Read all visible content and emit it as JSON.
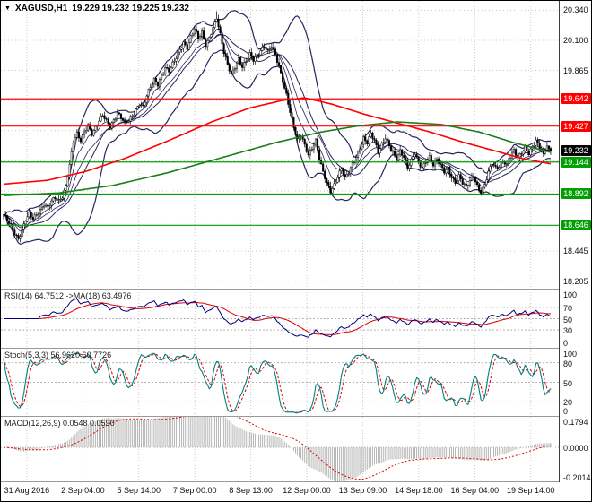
{
  "title": {
    "icon": "▼",
    "symbol_period": "XAGUSD,H1",
    "ohlc": "19.229 19.232 19.225 19.232"
  },
  "colors": {
    "grid": "#c9c9c9",
    "candle": "#000000",
    "candle_up_fill": "#ffffff",
    "bollinger": "#26265e",
    "ma_red": "#ff0000",
    "ma_green": "#1b7e1b",
    "resistance": "#ff0000",
    "support": "#00a000",
    "current_price_bg": "#000000",
    "rsi_line": "#000080",
    "rsi_ma": "#dd0000",
    "stoch_k": "#008080",
    "stoch_d": "#dd0000",
    "macd_hist": "#b5b5b5",
    "macd_signal": "#dd0000"
  },
  "main": {
    "price_min": 18.147,
    "price_max": 20.413,
    "y_axis_labels": [
      {
        "value": "20.340",
        "price": 20.34
      },
      {
        "value": "20.100",
        "price": 20.1
      },
      {
        "value": "19.865",
        "price": 19.865
      },
      {
        "value": "18.445",
        "price": 18.445
      },
      {
        "value": "18.205",
        "price": 18.205
      }
    ],
    "price_boxes": [
      {
        "value": "19.642",
        "price": 19.642,
        "color": "#ff0000",
        "type": "resistance"
      },
      {
        "value": "19.427",
        "price": 19.427,
        "color": "#ff0000",
        "type": "resistance"
      },
      {
        "value": "19.232",
        "price": 19.232,
        "color": "#000000",
        "type": "current-price"
      },
      {
        "value": "19.144",
        "price": 19.144,
        "color": "#00a000",
        "type": "support"
      },
      {
        "value": "18.892",
        "price": 18.892,
        "color": "#00a000",
        "type": "support"
      },
      {
        "value": "18.646",
        "price": 18.646,
        "color": "#00a000",
        "type": "support"
      }
    ],
    "h_lines": [
      {
        "price": 19.642,
        "color": "#ff0000"
      },
      {
        "price": 19.427,
        "color": "#ff0000"
      },
      {
        "price": 19.144,
        "color": "#00a000"
      },
      {
        "price": 18.892,
        "color": "#00a000"
      },
      {
        "price": 18.646,
        "color": "#00a000"
      }
    ]
  },
  "panels": {
    "rsi": {
      "header": "RSI(14) 64.7512 ->MA(18) 63.4976",
      "labels": [
        {
          "v": "100",
          "y": 100
        },
        {
          "v": "70",
          "y": 70
        },
        {
          "v": "50",
          "y": 50
        },
        {
          "v": "30",
          "y": 30
        },
        {
          "v": "0",
          "y": 0
        }
      ],
      "levels": [
        70,
        50,
        30
      ]
    },
    "stoch": {
      "header": "Stoch(5,3,3) 56.9620 60.7726",
      "labels": [
        {
          "v": "100",
          "y": 100
        },
        {
          "v": "80",
          "y": 80
        },
        {
          "v": "50",
          "y": 50
        },
        {
          "v": "20",
          "y": 20
        },
        {
          "v": "0",
          "y": 0
        }
      ],
      "levels": [
        80,
        50,
        20
      ]
    },
    "macd": {
      "header": "MACD(12,26,9) 0.0548 0.0590",
      "labels": [
        {
          "v": "0.1794",
          "y": 0.1794
        },
        {
          "v": "0.0000",
          "y": 0
        },
        {
          "v": "-0.2014",
          "y": -0.2014
        }
      ],
      "levels": [
        0
      ]
    }
  },
  "x_axis": {
    "labels": [
      "31 Aug 2016",
      "2 Sep 04:00",
      "5 Sep 14:00",
      "7 Sep 00:00",
      "8 Sep 13:00",
      "12 Sep 00:00",
      "13 Sep 09:00",
      "14 Sep 18:00",
      "16 Sep 04:00",
      "19 Sep 14:00"
    ]
  },
  "chart_data": {
    "type": "candlestick",
    "symbol": "XAGUSD",
    "timeframe": "H1",
    "title": "XAGUSD,H1 19.229 19.232 19.225 19.232",
    "x_tick_labels": [
      "31 Aug 2016",
      "2 Sep 04:00",
      "5 Sep 14:00",
      "7 Sep 00:00",
      "8 Sep 13:00",
      "12 Sep 00:00",
      "13 Sep 09:00",
      "14 Sep 18:00",
      "16 Sep 04:00",
      "19 Sep 14:00"
    ],
    "y_tick_labels": [
      "20.340",
      "20.100",
      "19.865",
      "18.445",
      "18.205"
    ],
    "y_range": [
      18.205,
      20.34
    ],
    "closes": [
      18.72,
      18.69,
      18.65,
      18.59,
      18.54,
      18.6,
      18.68,
      18.73,
      18.7,
      18.74,
      18.77,
      18.81,
      18.78,
      18.83,
      18.86,
      18.84,
      18.88,
      18.96,
      19.12,
      19.3,
      19.36,
      19.31,
      19.39,
      19.44,
      19.37,
      19.41,
      19.46,
      19.51,
      19.47,
      19.43,
      19.48,
      19.53,
      19.49,
      19.44,
      19.47,
      19.51,
      19.56,
      19.61,
      19.58,
      19.66,
      19.73,
      19.79,
      19.76,
      19.83,
      19.89,
      19.86,
      19.91,
      19.96,
      20.03,
      20.09,
      20.05,
      20.13,
      20.19,
      20.11,
      20.16,
      20.07,
      20.13,
      20.21,
      20.28,
      20.14,
      20.0,
      19.91,
      19.84,
      19.9,
      19.96,
      19.89,
      19.93,
      19.99,
      19.95,
      19.99,
      20.03,
      20.06,
      20.01,
      20.05,
      19.98,
      19.9,
      19.79,
      19.68,
      19.54,
      19.41,
      19.31,
      19.36,
      19.28,
      19.21,
      19.26,
      19.31,
      19.16,
      19.06,
      18.98,
      18.92,
      18.97,
      19.03,
      19.09,
      19.01,
      19.06,
      19.13,
      19.19,
      19.26,
      19.33,
      19.29,
      19.36,
      19.31,
      19.23,
      19.29,
      19.34,
      19.27,
      19.21,
      19.16,
      19.23,
      19.19,
      19.11,
      19.16,
      19.21,
      19.13,
      19.09,
      19.15,
      19.19,
      19.13,
      19.17,
      19.11,
      19.06,
      19.09,
      19.03,
      18.99,
      19.04,
      18.98,
      18.94,
      18.99,
      19.03,
      18.96,
      18.91,
      18.97,
      19.06,
      19.13,
      19.09,
      19.11,
      19.16,
      19.13,
      19.19,
      19.23,
      19.17,
      19.21,
      19.26,
      19.22,
      19.27,
      19.31,
      19.25,
      19.21,
      19.27,
      19.232
    ],
    "overlays": {
      "bollinger_period": 20,
      "bollinger_dev": 2,
      "ma_red_points": [
        [
          0,
          18.97
        ],
        [
          0.08,
          19.0
        ],
        [
          0.15,
          19.07
        ],
        [
          0.22,
          19.17
        ],
        [
          0.3,
          19.31
        ],
        [
          0.38,
          19.46
        ],
        [
          0.45,
          19.57
        ],
        [
          0.51,
          19.63
        ],
        [
          0.55,
          19.65
        ],
        [
          0.6,
          19.6
        ],
        [
          0.66,
          19.52
        ],
        [
          0.72,
          19.45
        ],
        [
          0.78,
          19.38
        ],
        [
          0.84,
          19.3
        ],
        [
          0.9,
          19.23
        ],
        [
          0.95,
          19.17
        ],
        [
          1,
          19.13
        ]
      ],
      "ma_green_points": [
        [
          0,
          18.88
        ],
        [
          0.1,
          18.9
        ],
        [
          0.2,
          18.96
        ],
        [
          0.3,
          19.06
        ],
        [
          0.4,
          19.18
        ],
        [
          0.5,
          19.3
        ],
        [
          0.58,
          19.38
        ],
        [
          0.65,
          19.43
        ],
        [
          0.72,
          19.46
        ],
        [
          0.8,
          19.44
        ],
        [
          0.87,
          19.38
        ],
        [
          0.93,
          19.3
        ],
        [
          1,
          19.22
        ]
      ]
    },
    "levels": {
      "resistance": [
        19.642,
        19.427
      ],
      "support": [
        19.144,
        18.892,
        18.646
      ],
      "current": 19.232
    },
    "indicator_values": {
      "rsi": 64.7512,
      "rsi_ma": 63.4976,
      "stoch_k": 56.962,
      "stoch_d": 60.7726,
      "macd": 0.0548,
      "macd_signal": 0.059
    }
  }
}
